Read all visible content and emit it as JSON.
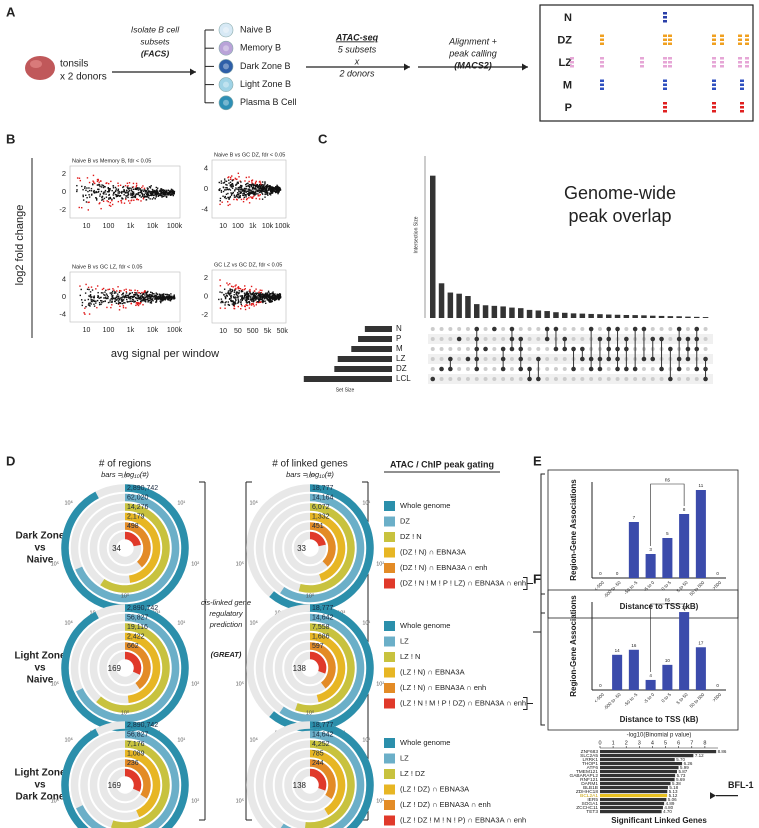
{
  "panel_a": {
    "letter": "A",
    "source": [
      "tonsils",
      "x 2 donors"
    ],
    "sort": [
      "Isolate B cell",
      "subsets",
      "(FACS)"
    ],
    "subsets": [
      {
        "label": "Naive B",
        "color": "#d7e9f5"
      },
      {
        "label": "Memory B",
        "color": "#b9a3d8"
      },
      {
        "label": "Dark Zone B",
        "color": "#2f5fa8"
      },
      {
        "label": "Light Zone B",
        "color": "#9fd3e6"
      },
      {
        "label": "Plasma B Cell",
        "color": "#2e8fb5"
      }
    ],
    "seq": [
      "ATAC-seq",
      "5 subsets",
      "x",
      "2 donors"
    ],
    "align": [
      "Alignment +",
      "peak calling",
      "(MACS2)"
    ],
    "tracks": [
      {
        "label": "N",
        "color": "#2a3fa8"
      },
      {
        "label": "DZ",
        "color": "#f0a020"
      },
      {
        "label": "LZ",
        "color": "#e6a6d6"
      },
      {
        "label": "M",
        "color": "#3050c0"
      },
      {
        "label": "P",
        "color": "#e02020"
      }
    ]
  },
  "panel_b": {
    "letter": "B",
    "y_label": "log2 fold change",
    "x_label": "avg signal per window",
    "plots": [
      {
        "title": "Naive B vs Memory B, fdr < 0.05",
        "xticks": [
          "10",
          "100",
          "1k",
          "10k",
          "100k"
        ],
        "yticks": [
          "2",
          "0",
          "-2"
        ]
      },
      {
        "title": "Naive B vs GC DZ, fdr < 0.05",
        "xticks": [
          "10",
          "100",
          "1k",
          "10k",
          "100k"
        ],
        "yticks": [
          "4",
          "0",
          "-4"
        ]
      },
      {
        "title": "Naive B vs GC LZ, fdr < 0.05",
        "xticks": [
          "10",
          "100",
          "1k",
          "10k",
          "100k"
        ],
        "yticks": [
          "4",
          "0",
          "-4"
        ]
      },
      {
        "title": "GC LZ vs GC DZ, fdr < 0.05",
        "xticks": [
          "10",
          "50",
          "500",
          "5k",
          "50k"
        ],
        "yticks": [
          "2",
          "0",
          "-2"
        ]
      }
    ]
  },
  "panel_c": {
    "letter": "C",
    "title": [
      "Genome-wide",
      "peak overlap"
    ],
    "y_label": "Intersection Size",
    "x_label": "Set Size",
    "sets": [
      "N",
      "P",
      "M",
      "LZ",
      "DZ",
      "LCL"
    ],
    "set_sizes": [
      40000,
      50000,
      60000,
      80000,
      85000,
      130000
    ],
    "set_xlim": [
      0,
      140000
    ],
    "intersection_sizes": [
      123000,
      30000,
      22000,
      21000,
      19000,
      12000,
      11000,
      10500,
      10000,
      9000,
      8500,
      7000,
      6500,
      6000,
      5000,
      4500,
      4000,
      3800,
      3500,
      3300,
      3000,
      2800,
      2600,
      2500,
      2300,
      2000,
      1800,
      1600,
      1500,
      1200,
      1000,
      800
    ],
    "ylim": [
      0,
      140000
    ],
    "membership": [
      [
        5
      ],
      [
        4
      ],
      [
        3,
        4
      ],
      [
        1
      ],
      [
        3
      ],
      [
        0,
        1,
        2,
        3,
        4
      ],
      [
        2
      ],
      [
        0
      ],
      [
        2,
        3,
        4
      ],
      [
        0,
        1,
        2
      ],
      [
        1,
        2,
        3,
        4
      ],
      [
        4,
        5
      ],
      [
        3,
        5
      ],
      [
        0,
        1
      ],
      [
        0,
        2
      ],
      [
        1,
        2
      ],
      [
        2,
        4
      ],
      [
        2,
        3
      ],
      [
        0,
        3,
        4
      ],
      [
        1,
        3,
        4
      ],
      [
        0,
        1,
        2,
        3
      ],
      [
        0,
        2,
        3,
        4
      ],
      [
        1,
        2,
        4
      ],
      [
        0,
        4
      ],
      [
        0,
        3
      ],
      [
        1,
        3
      ],
      [
        1,
        4
      ],
      [
        2,
        5
      ],
      [
        0,
        1,
        3,
        4
      ],
      [
        1,
        2,
        3
      ],
      [
        0,
        1,
        2,
        4
      ],
      [
        3,
        4,
        5
      ]
    ]
  },
  "panel_d": {
    "letter": "D",
    "regions_title": "# of regions",
    "genes_title": "# of linked genes",
    "bars_note": "bars = log₁₀(#)",
    "scale_labels": [
      "10⁰",
      "10¹",
      "10²",
      "10³",
      "10⁴",
      "10⁵",
      "10⁶"
    ],
    "middle": [
      "cis-linked gene",
      "regulatory",
      "prediction",
      "(GREAT)"
    ],
    "gating_title": "ATAC / ChIP peak gating",
    "ring_colors": [
      "#2b8fab",
      "#6bafc8",
      "#c8c23e",
      "#e7b624",
      "#e38b26",
      "#e0392a"
    ],
    "rows": [
      {
        "label": [
          "Dark Zone",
          "vs",
          "Naive"
        ],
        "regions": [
          {
            "value": 2890742,
            "label": "2,890,742"
          },
          {
            "value": 62020,
            "label": "62,020"
          },
          {
            "value": 14276,
            "label": "14,276"
          },
          {
            "value": 2179,
            "label": "2,179"
          },
          498,
          34
        ],
        "genes": [
          {
            "value": 18777,
            "label": "18,777"
          },
          {
            "value": 14164,
            "label": "14,164"
          },
          {
            "value": 6072,
            "label": "6,072"
          },
          {
            "value": 1332,
            "label": "1,332"
          },
          451,
          33
        ],
        "legend": [
          "Whole genome",
          "DZ",
          "DZ ! N",
          "(DZ ! N) ∩ EBNA3A",
          "(DZ ! N) ∩ EBNA3A ∩ enh",
          "(DZ ! N ! M ! P ! LZ) ∩ EBNA3A ∩ enh"
        ]
      },
      {
        "label": [
          "Light Zone",
          "vs",
          "Naive"
        ],
        "regions": [
          {
            "value": 2890742,
            "label": "2,890,742"
          },
          {
            "value": 56827,
            "label": "56,827"
          },
          {
            "value": 19116,
            "label": "19,116"
          },
          {
            "value": 2422,
            "label": "2,422"
          },
          662,
          169
        ],
        "genes": [
          {
            "value": 18777,
            "label": "18,777"
          },
          {
            "value": 14642,
            "label": "14,642"
          },
          {
            "value": 7558,
            "label": "7,558"
          },
          {
            "value": 1686,
            "label": "1,686"
          },
          597,
          138
        ],
        "legend": [
          "Whole genome",
          "LZ",
          "LZ ! N",
          "(LZ ! N) ∩ EBNA3A",
          "(LZ ! N) ∩ EBNA3A ∩ enh",
          "(LZ ! N ! M ! P ! DZ) ∩ EBNA3A ∩ enh"
        ]
      },
      {
        "label": [
          "Light Zone",
          "vs",
          "Dark Zone"
        ],
        "regions": [
          {
            "value": 2890742,
            "label": "2,890,742"
          },
          {
            "value": 56827,
            "label": "56,827"
          },
          {
            "value": 7176,
            "label": "7,176"
          },
          {
            "value": 1089,
            "label": "1,089"
          },
          236,
          169
        ],
        "genes": [
          {
            "value": 18777,
            "label": "18,777"
          },
          {
            "value": 14642,
            "label": "14,642"
          },
          {
            "value": 4252,
            "label": "4,252"
          },
          785,
          244,
          138
        ],
        "legend": [
          "Whole genome",
          "LZ",
          "LZ ! DZ",
          "(LZ ! DZ) ∩ EBNA3A",
          "(LZ ! DZ) ∩ EBNA3A ∩ enh",
          "(LZ ! DZ ! M ! N ! P) ∩ EBNA3A ∩ enh"
        ]
      }
    ]
  },
  "panel_e": {
    "letter": "E",
    "y_label": "Region-Gene Associations",
    "x_label": "Distance to TSS (kB)",
    "annotation": "ns",
    "color": "#3b4bab",
    "categories": [
      "<-500",
      "-500 to -50",
      "-50 to -5",
      "-5 to 0",
      "0 to 5",
      "5 to 50",
      "50 to 500",
      ">500"
    ],
    "values": [
      0,
      0,
      7,
      3,
      5,
      8,
      11,
      0
    ],
    "ylim": [
      0,
      12
    ]
  },
  "panel_f": {
    "letter": "F",
    "y_label": "Region-Gene Associations",
    "x_label": "Distance to TSS (kB)",
    "annotation": "ns",
    "color": "#3b4bab",
    "categories": [
      "<-500",
      "-500 to -50",
      "-50 to -5",
      "-5 to 0",
      "0 to 5",
      "5 to 50",
      "50 to 500",
      ">500"
    ],
    "values": [
      0,
      14,
      16,
      4,
      10,
      31,
      17,
      0
    ],
    "ylim": [
      0,
      35
    ],
    "genes": {
      "title": "-log10(Binomial p value)",
      "x_label": "Significant Linked Genes",
      "callout": "BFL-1",
      "color": "#333333",
      "highlight_color": "#e8c020",
      "highlight_index": 11,
      "xlim": [
        0,
        9
      ],
      "xticks": [
        0,
        1,
        2,
        3,
        4,
        5,
        6,
        7,
        8
      ],
      "categories": [
        "ZNF683",
        "SLC2A5",
        "LRRK1",
        "THOP1",
        "ATF6",
        "TMEM121",
        "GABARAPL2",
        "RNF121",
        "DARM1",
        "BLB1B",
        "ZDHHC18",
        "BCL2A1",
        "IER5",
        "SOGA1",
        "ZCCHC11",
        "TET3"
      ],
      "values": [
        8.86,
        7.12,
        5.7,
        6.26,
        5.99,
        5.87,
        5.73,
        5.69,
        5.38,
        5.18,
        5.13,
        5.12,
        5.06,
        4.89,
        4.8,
        4.7
      ],
      "value_labels": [
        "8.86",
        "7.12",
        "5.70",
        "6.26",
        "5.99",
        "5.87",
        "5.73",
        "5.69",
        "5.38",
        "5.18",
        "5.13",
        "5.12",
        "5.06",
        "4.89",
        "4.80",
        "4.70"
      ]
    }
  }
}
